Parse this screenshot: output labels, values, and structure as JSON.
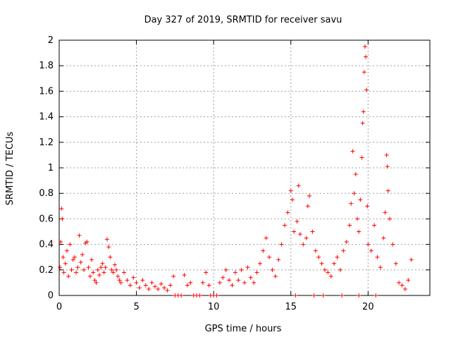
{
  "chart_data": {
    "type": "scatter",
    "title": "Day 327 of 2019, SRMTID for receiver savu",
    "xlabel": "GPS time / hours",
    "ylabel": "SRMTID / TECUs",
    "xlim": [
      0,
      24
    ],
    "ylim": [
      0,
      2
    ],
    "x_ticks": [
      "0",
      "5",
      "10",
      "15",
      "20"
    ],
    "x_tick_values": [
      0,
      5,
      10,
      15,
      20
    ],
    "y_ticks": [
      "0",
      "0.2",
      "0.4",
      "0.6",
      "0.8",
      "1",
      "1.2",
      "1.4",
      "1.6",
      "1.8",
      "2"
    ],
    "y_tick_values": [
      0,
      0.2,
      0.4,
      0.6,
      0.8,
      1.0,
      1.2,
      1.4,
      1.6,
      1.8,
      2.0
    ],
    "grid": true,
    "marker": "+",
    "color": "#ff0000",
    "series": [
      {
        "name": "SRMTID",
        "points": [
          [
            0.05,
            0.22
          ],
          [
            0.1,
            0.42
          ],
          [
            0.15,
            0.68
          ],
          [
            0.2,
            0.6
          ],
          [
            0.25,
            0.3
          ],
          [
            0.3,
            0.18
          ],
          [
            0.4,
            0.25
          ],
          [
            0.5,
            0.35
          ],
          [
            0.6,
            0.15
          ],
          [
            0.7,
            0.4
          ],
          [
            0.8,
            0.2
          ],
          [
            0.9,
            0.28
          ],
          [
            1.0,
            0.3
          ],
          [
            1.1,
            0.18
          ],
          [
            1.2,
            0.22
          ],
          [
            1.3,
            0.47
          ],
          [
            1.4,
            0.26
          ],
          [
            1.5,
            0.32
          ],
          [
            1.6,
            0.2
          ],
          [
            1.7,
            0.41
          ],
          [
            1.8,
            0.42
          ],
          [
            1.9,
            0.22
          ],
          [
            2.0,
            0.15
          ],
          [
            2.1,
            0.28
          ],
          [
            2.2,
            0.18
          ],
          [
            2.3,
            0.12
          ],
          [
            2.4,
            0.1
          ],
          [
            2.5,
            0.2
          ],
          [
            2.6,
            0.16
          ],
          [
            2.7,
            0.22
          ],
          [
            2.8,
            0.25
          ],
          [
            2.9,
            0.18
          ],
          [
            3.0,
            0.22
          ],
          [
            3.1,
            0.44
          ],
          [
            3.2,
            0.38
          ],
          [
            3.3,
            0.3
          ],
          [
            3.4,
            0.2
          ],
          [
            3.5,
            0.18
          ],
          [
            3.6,
            0.24
          ],
          [
            3.7,
            0.2
          ],
          [
            3.8,
            0.15
          ],
          [
            3.9,
            0.12
          ],
          [
            4.0,
            0.1
          ],
          [
            4.2,
            0.18
          ],
          [
            4.4,
            0.12
          ],
          [
            4.6,
            0.08
          ],
          [
            4.8,
            0.14
          ],
          [
            5.0,
            0.1
          ],
          [
            5.2,
            0.06
          ],
          [
            5.4,
            0.12
          ],
          [
            5.6,
            0.08
          ],
          [
            5.8,
            0.05
          ],
          [
            6.0,
            0.1
          ],
          [
            6.2,
            0.07
          ],
          [
            6.4,
            0.05
          ],
          [
            6.6,
            0.09
          ],
          [
            6.8,
            0.06
          ],
          [
            7.0,
            0.04
          ],
          [
            7.2,
            0.08
          ],
          [
            7.4,
            0.15
          ],
          [
            7.5,
            0.0
          ],
          [
            7.7,
            0.0
          ],
          [
            7.9,
            0.0
          ],
          [
            8.1,
            0.16
          ],
          [
            8.3,
            0.08
          ],
          [
            8.5,
            0.1
          ],
          [
            8.7,
            0.0
          ],
          [
            8.9,
            0.0
          ],
          [
            9.1,
            0.0
          ],
          [
            9.3,
            0.1
          ],
          [
            9.5,
            0.18
          ],
          [
            9.7,
            0.08
          ],
          [
            9.8,
            0.0
          ],
          [
            10.0,
            0.0
          ],
          [
            10.2,
            0.0
          ],
          [
            10.4,
            0.1
          ],
          [
            10.6,
            0.14
          ],
          [
            10.8,
            0.2
          ],
          [
            11.0,
            0.12
          ],
          [
            11.2,
            0.08
          ],
          [
            11.4,
            0.18
          ],
          [
            11.6,
            0.12
          ],
          [
            11.8,
            0.2
          ],
          [
            12.0,
            0.1
          ],
          [
            12.2,
            0.22
          ],
          [
            12.4,
            0.14
          ],
          [
            12.6,
            0.1
          ],
          [
            12.8,
            0.18
          ],
          [
            13.0,
            0.25
          ],
          [
            13.2,
            0.35
          ],
          [
            13.4,
            0.45
          ],
          [
            13.6,
            0.3
          ],
          [
            13.8,
            0.2
          ],
          [
            14.0,
            0.15
          ],
          [
            14.2,
            0.28
          ],
          [
            14.4,
            0.4
          ],
          [
            14.6,
            0.55
          ],
          [
            14.8,
            0.65
          ],
          [
            15.0,
            0.82
          ],
          [
            15.1,
            0.75
          ],
          [
            15.2,
            0.5
          ],
          [
            15.4,
            0.58
          ],
          [
            15.5,
            0.86
          ],
          [
            15.6,
            0.48
          ],
          [
            15.8,
            0.4
          ],
          [
            16.0,
            0.45
          ],
          [
            16.1,
            0.7
          ],
          [
            16.2,
            0.78
          ],
          [
            16.4,
            0.5
          ],
          [
            16.6,
            0.35
          ],
          [
            16.8,
            0.3
          ],
          [
            17.0,
            0.25
          ],
          [
            17.2,
            0.2
          ],
          [
            17.4,
            0.18
          ],
          [
            17.6,
            0.15
          ],
          [
            17.8,
            0.25
          ],
          [
            18.0,
            0.3
          ],
          [
            18.2,
            0.2
          ],
          [
            18.4,
            0.35
          ],
          [
            18.6,
            0.42
          ],
          [
            18.8,
            0.55
          ],
          [
            18.9,
            0.72
          ],
          [
            19.0,
            1.13
          ],
          [
            19.1,
            0.8
          ],
          [
            19.2,
            0.95
          ],
          [
            19.3,
            0.6
          ],
          [
            19.4,
            0.5
          ],
          [
            19.5,
            0.75
          ],
          [
            19.6,
            1.08
          ],
          [
            19.65,
            1.35
          ],
          [
            19.7,
            1.44
          ],
          [
            19.75,
            1.75
          ],
          [
            19.8,
            1.95
          ],
          [
            19.85,
            1.87
          ],
          [
            19.9,
            1.61
          ],
          [
            19.95,
            0.7
          ],
          [
            20.0,
            0.4
          ],
          [
            20.2,
            0.35
          ],
          [
            20.4,
            0.55
          ],
          [
            20.6,
            0.3
          ],
          [
            20.8,
            0.22
          ],
          [
            21.0,
            0.45
          ],
          [
            21.1,
            0.65
          ],
          [
            21.2,
            1.1
          ],
          [
            21.25,
            1.01
          ],
          [
            21.3,
            0.82
          ],
          [
            21.4,
            0.6
          ],
          [
            21.6,
            0.4
          ],
          [
            21.8,
            0.25
          ],
          [
            22.0,
            0.1
          ],
          [
            22.2,
            0.08
          ],
          [
            22.4,
            0.05
          ],
          [
            22.6,
            0.12
          ],
          [
            22.8,
            0.28
          ],
          [
            15.3,
            0.0
          ],
          [
            16.5,
            0.0
          ],
          [
            17.1,
            0.0
          ],
          [
            18.3,
            0.0
          ],
          [
            19.4,
            0.0
          ],
          [
            20.5,
            0.0
          ]
        ]
      }
    ]
  }
}
